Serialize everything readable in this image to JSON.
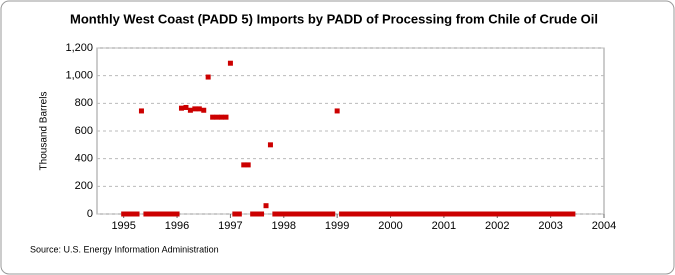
{
  "chart_data": {
    "type": "scatter",
    "title": "Monthly West Coast (PADD 5) Imports by PADD of Processing from Chile of Crude Oil",
    "y_label": "Thousand Barrels",
    "source": "Source: U.S. Energy Information Administration",
    "x": [
      1995,
      1995.083,
      1995.167,
      1995.25,
      1995.333,
      1995.417,
      1995.5,
      1995.583,
      1995.667,
      1995.75,
      1995.833,
      1995.917,
      1996,
      1996.083,
      1996.167,
      1996.25,
      1996.333,
      1996.417,
      1996.5,
      1996.583,
      1996.667,
      1996.75,
      1996.833,
      1996.917,
      1997,
      1997.083,
      1997.167,
      1997.25,
      1997.333,
      1997.417,
      1997.5,
      1997.583,
      1997.667,
      1997.75,
      1997.833,
      1997.917,
      1998,
      1998.083,
      1998.167,
      1998.25,
      1998.333,
      1998.417,
      1998.5,
      1998.583,
      1998.667,
      1998.75,
      1998.833,
      1998.917,
      1999,
      1999.083,
      1999.167,
      1999.25,
      1999.333,
      1999.417,
      1999.5,
      1999.583,
      1999.667,
      1999.75,
      1999.833,
      1999.917,
      2000,
      2000.083,
      2000.167,
      2000.25,
      2000.333,
      2000.417,
      2000.5,
      2000.583,
      2000.667,
      2000.75,
      2000.833,
      2000.917,
      2001,
      2001.083,
      2001.167,
      2001.25,
      2001.333,
      2001.417,
      2001.5,
      2001.583,
      2001.667,
      2001.75,
      2001.833,
      2001.917,
      2002,
      2002.083,
      2002.167,
      2002.25,
      2002.333,
      2002.417,
      2002.5,
      2002.583,
      2002.667,
      2002.75,
      2002.833,
      2002.917,
      2003,
      2003.083,
      2003.167,
      2003.25,
      2003.333,
      2003.417
    ],
    "series": [
      {
        "name": "Imports",
        "color": "#cc0000",
        "values": [
          0,
          0,
          0,
          0,
          745,
          0,
          0,
          0,
          0,
          0,
          0,
          0,
          0,
          765,
          770,
          750,
          760,
          760,
          750,
          990,
          700,
          700,
          700,
          700,
          1090,
          0,
          0,
          355,
          355,
          0,
          0,
          0,
          60,
          500,
          0,
          0,
          0,
          0,
          0,
          0,
          0,
          0,
          0,
          0,
          0,
          0,
          0,
          0,
          745,
          0,
          0,
          0,
          0,
          0,
          0,
          0,
          0,
          0,
          0,
          0,
          0,
          0,
          0,
          0,
          0,
          0,
          0,
          0,
          0,
          0,
          0,
          0,
          0,
          0,
          0,
          0,
          0,
          0,
          0,
          0,
          0,
          0,
          0,
          0,
          0,
          0,
          0,
          0,
          0,
          0,
          0,
          0,
          0,
          0,
          0,
          0,
          0,
          0,
          0,
          0,
          0,
          0
        ]
      }
    ],
    "xlim": [
      1994.5,
      2004
    ],
    "xticks": [
      1995,
      1996,
      1997,
      1998,
      1999,
      2000,
      2001,
      2002,
      2003,
      2004
    ],
    "ylim": [
      0,
      1200
    ],
    "yticks": [
      0,
      200,
      400,
      600,
      800,
      {
        "value": 1000,
        "label": "1,000"
      },
      {
        "value": 1200,
        "label": "1,200"
      }
    ],
    "grid": true
  }
}
